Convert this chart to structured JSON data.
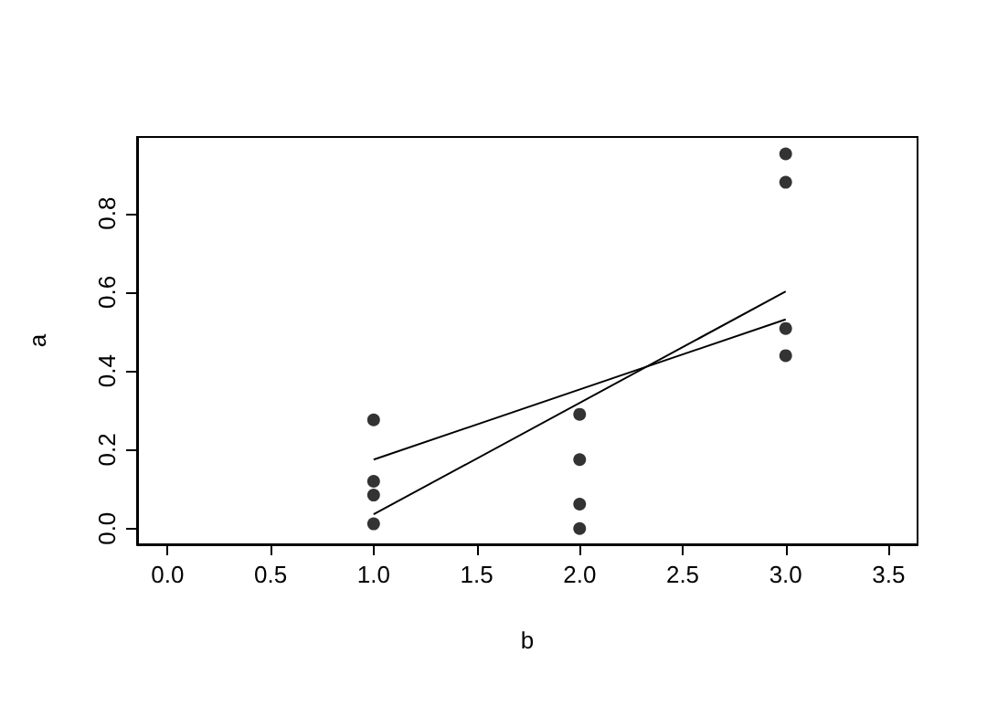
{
  "chart_data": {
    "type": "scatter",
    "xlabel": "b",
    "ylabel": "a",
    "xlim": [
      -0.148,
      3.64
    ],
    "ylim": [
      -0.04,
      0.994
    ],
    "xticks": [
      {
        "value": 0,
        "label": "0.0"
      },
      0.5,
      {
        "value": 1,
        "label": "1.0"
      },
      1.5,
      {
        "value": 2,
        "label": "2.0"
      },
      2.5,
      {
        "value": 3,
        "label": "3.0"
      },
      3.5
    ],
    "yticks": [
      {
        "value": 0,
        "label": "0.0"
      },
      0.2,
      0.4,
      0.6,
      0.8
    ],
    "grid": false,
    "series": [
      {
        "color": "#000000",
        "marker": "circle",
        "x": [
          1,
          1,
          1,
          1,
          2,
          2,
          2,
          2,
          3,
          3,
          3,
          3
        ],
        "values": [
          0.276,
          0.12,
          0.085,
          0.012,
          0.29,
          0.175,
          0.062,
          0,
          0.951,
          0.879,
          0.508,
          0.439
        ]
      },
      {
        "type": "line",
        "color": "#000000",
        "marker": "none",
        "line_style": "solid",
        "x": [
          1,
          3
        ],
        "values": [
          0.175,
          0.531
        ]
      },
      {
        "type": "line",
        "color": "#000000",
        "marker": "none",
        "line_style": "solid",
        "x": [
          1,
          3
        ],
        "values": [
          0.036,
          0.602
        ]
      }
    ]
  }
}
